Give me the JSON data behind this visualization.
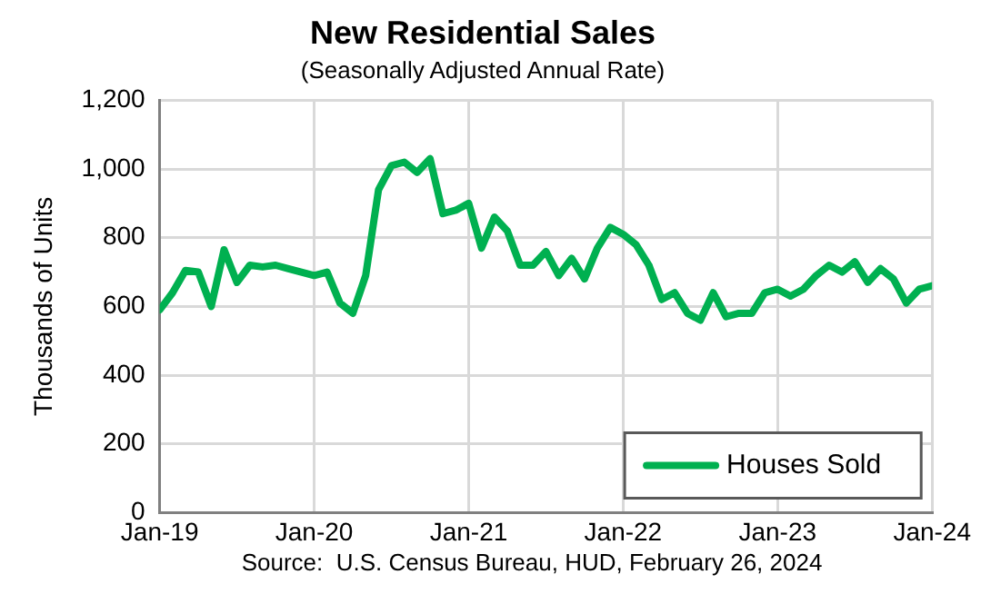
{
  "chart_data": {
    "type": "line",
    "title": "New Residential Sales",
    "subtitle": "(Seasonally Adjusted Annual Rate)",
    "ylabel": "Thousands of Units",
    "x": [
      "2019-01",
      "2019-02",
      "2019-03",
      "2019-04",
      "2019-05",
      "2019-06",
      "2019-07",
      "2019-08",
      "2019-09",
      "2019-10",
      "2019-11",
      "2019-12",
      "2020-01",
      "2020-02",
      "2020-03",
      "2020-04",
      "2020-05",
      "2020-06",
      "2020-07",
      "2020-08",
      "2020-09",
      "2020-10",
      "2020-11",
      "2020-12",
      "2021-01",
      "2021-02",
      "2021-03",
      "2021-04",
      "2021-05",
      "2021-06",
      "2021-07",
      "2021-08",
      "2021-09",
      "2021-10",
      "2021-11",
      "2021-12",
      "2022-01",
      "2022-02",
      "2022-03",
      "2022-04",
      "2022-05",
      "2022-06",
      "2022-07",
      "2022-08",
      "2022-09",
      "2022-10",
      "2022-11",
      "2022-12",
      "2023-01",
      "2023-02",
      "2023-03",
      "2023-04",
      "2023-05",
      "2023-06",
      "2023-07",
      "2023-08",
      "2023-09",
      "2023-10",
      "2023-11",
      "2023-12",
      "2024-01"
    ],
    "series": [
      {
        "name": "Houses Sold",
        "color": "#00b050",
        "values": [
          590,
          640,
          705,
          700,
          600,
          765,
          670,
          720,
          715,
          720,
          710,
          700,
          690,
          700,
          610,
          580,
          690,
          940,
          1010,
          1020,
          990,
          1030,
          870,
          880,
          900,
          770,
          860,
          820,
          720,
          720,
          760,
          690,
          740,
          680,
          770,
          830,
          810,
          780,
          720,
          620,
          640,
          580,
          560,
          640,
          570,
          580,
          580,
          640,
          650,
          630,
          650,
          690,
          720,
          700,
          730,
          670,
          710,
          680,
          610,
          650,
          660
        ]
      }
    ],
    "xlim": [
      "2019-01",
      "2024-01"
    ],
    "xticks": [
      {
        "value": "2019-01",
        "label": "Jan-19"
      },
      {
        "value": "2020-01",
        "label": "Jan-20"
      },
      {
        "value": "2021-01",
        "label": "Jan-21"
      },
      {
        "value": "2022-01",
        "label": "Jan-22"
      },
      {
        "value": "2023-01",
        "label": "Jan-23"
      },
      {
        "value": "2024-01",
        "label": "Jan-24"
      }
    ],
    "ylim": [
      0,
      1200
    ],
    "yticks": [
      {
        "value": 0,
        "label": "0"
      },
      {
        "value": 200,
        "label": "200"
      },
      {
        "value": 400,
        "label": "400"
      },
      {
        "value": 600,
        "label": "600"
      },
      {
        "value": 800,
        "label": "800"
      },
      {
        "value": 1000,
        "label": "1,000"
      },
      {
        "value": 1200,
        "label": "1,200"
      }
    ],
    "grid": true,
    "legend": "bottom right",
    "marker": "none",
    "line_style": "solid",
    "annotations": [
      "Source:  U.S. Census Bureau, HUD, February 26, 2024"
    ]
  }
}
